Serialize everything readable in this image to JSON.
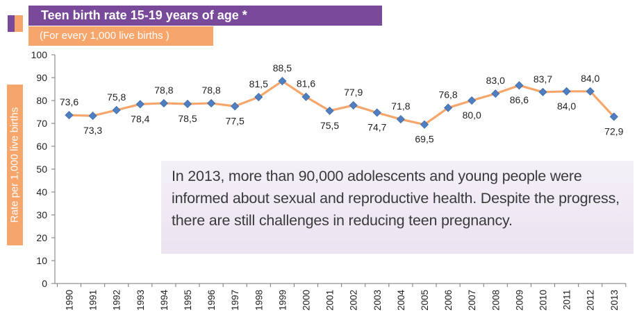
{
  "header": {
    "title": "Teen birth rate 15-19 years of age *",
    "subtitle": "(For every 1,000 live births )"
  },
  "colors": {
    "title_bg": "#7a4a9a",
    "subtitle_bg": "#f6a56b",
    "line": "#f6a56b",
    "marker": "#4f7fc0",
    "note_bg": "#ebe3f1"
  },
  "note": {
    "text": "In 2013, more than 90,000 adolescents and young people were informed about sexual and reproductive health. Despite the progress, there are still challenges in reducing teen pregnancy."
  },
  "chart_data": {
    "type": "line",
    "title": "Teen birth rate 15-19 years of age *",
    "subtitle": "(For every 1,000 live births )",
    "ylabel": "Rate per 1,000 live births",
    "xlabel": "",
    "ylim": [
      0,
      100
    ],
    "yticks": [
      "0",
      "10",
      "20",
      "30",
      "40",
      "50",
      "60",
      "70",
      "80",
      "90",
      "100"
    ],
    "grid": false,
    "categories": [
      "1990",
      "1991",
      "1992",
      "1993",
      "1994",
      "1995",
      "1996",
      "1997",
      "1998",
      "1999",
      "2000",
      "2001",
      "2002",
      "2003",
      "2004",
      "2005",
      "2006",
      "2007",
      "2008",
      "2009",
      "2010",
      "2011",
      "2012",
      "2013"
    ],
    "series": [
      {
        "values": [
          73.6,
          73.3,
          75.8,
          78.4,
          78.8,
          78.5,
          78.8,
          77.5,
          81.5,
          88.5,
          81.6,
          75.5,
          77.9,
          74.7,
          71.8,
          69.5,
          76.8,
          80.0,
          83.0,
          86.6,
          83.7,
          84.0,
          84.0,
          72.9
        ],
        "labels": [
          "73,6",
          "73,3",
          "75,8",
          "78,4",
          "78,8",
          "78,5",
          "78,8",
          "77,5",
          "81,5",
          "88,5",
          "81,6",
          "75,5",
          "77,9",
          "74,7",
          "71,8",
          "69,5",
          "76,8",
          "80,0",
          "83,0",
          "86,6",
          "83,7",
          "84,0",
          "84,0",
          "72,9"
        ]
      }
    ]
  }
}
